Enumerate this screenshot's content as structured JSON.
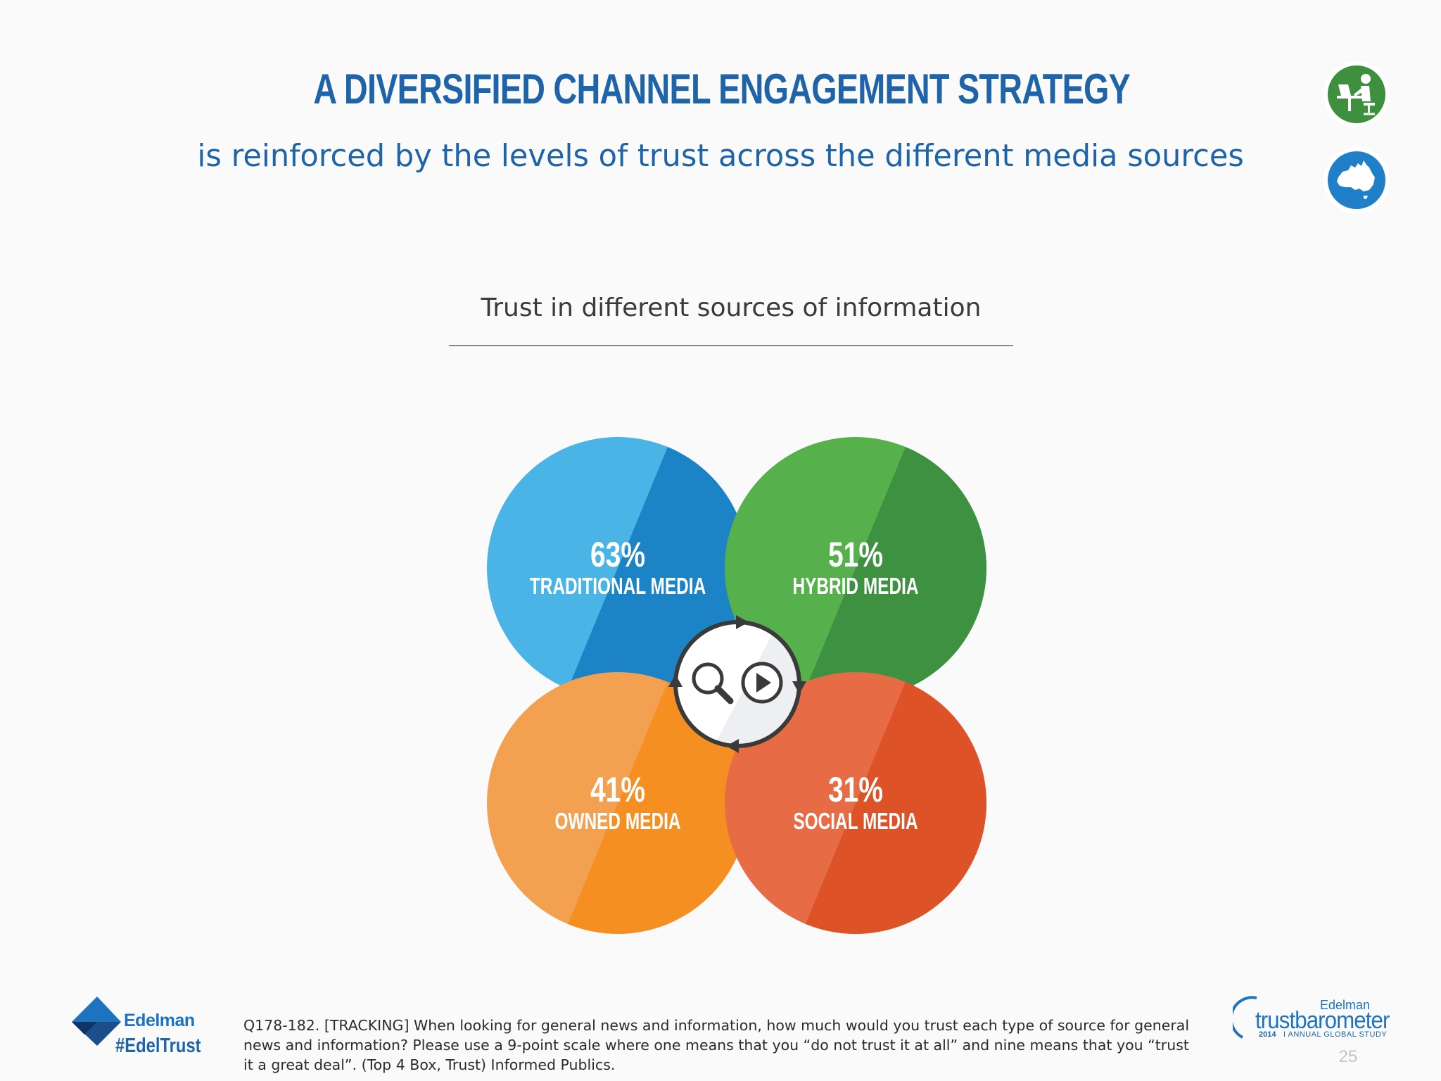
{
  "header": {
    "title": "A DIVERSIFIED CHANNEL ENGAGEMENT STRATEGY",
    "subtitle": "is reinforced by the levels of trust across the different media sources"
  },
  "badges": [
    {
      "icon": "person-at-laptop-icon",
      "color": "#3e8f3e"
    },
    {
      "icon": "australia-map-icon",
      "color": "#1f7fc8"
    }
  ],
  "chart_data": {
    "type": "venn-bubbles",
    "title": "Trust in different sources of information",
    "unit": "%",
    "categories": [
      "TRADITIONAL MEDIA",
      "HYBRID MEDIA",
      "OWNED MEDIA",
      "SOCIAL MEDIA"
    ],
    "values": [
      63,
      51,
      41,
      31
    ],
    "value_labels": [
      "63%",
      "51%",
      "41%",
      "31%"
    ],
    "colors": [
      {
        "light": "#4ab4e6",
        "dark": "#1c83c7"
      },
      {
        "light": "#56b04b",
        "dark": "#3f9142"
      },
      {
        "light": "#f3a150",
        "dark": "#f58f22"
      },
      {
        "light": "#e76c45",
        "dark": "#dd5226"
      }
    ],
    "center_icons": [
      "magnifier-icon",
      "play-icon",
      "cycle-arrows-icon"
    ]
  },
  "footer": {
    "brand": "Edelman",
    "hashtag": "#EdelTrust",
    "footnote": "Q178-182. [TRACKING] When looking for general news and information, how much would you trust each type of source for general news and information? Please use a 9-point scale where one means that you “do not trust it at all” and nine means that you “trust it a great deal”. (Top 4 Box, Trust) Informed Publics.",
    "trustbarometer_brand": "Edelman",
    "trustbarometer_name": "trustbarometer",
    "trustbarometer_year": "2014",
    "trustbarometer_study": "I ANNUAL GLOBAL STUDY",
    "page_number": "25"
  }
}
